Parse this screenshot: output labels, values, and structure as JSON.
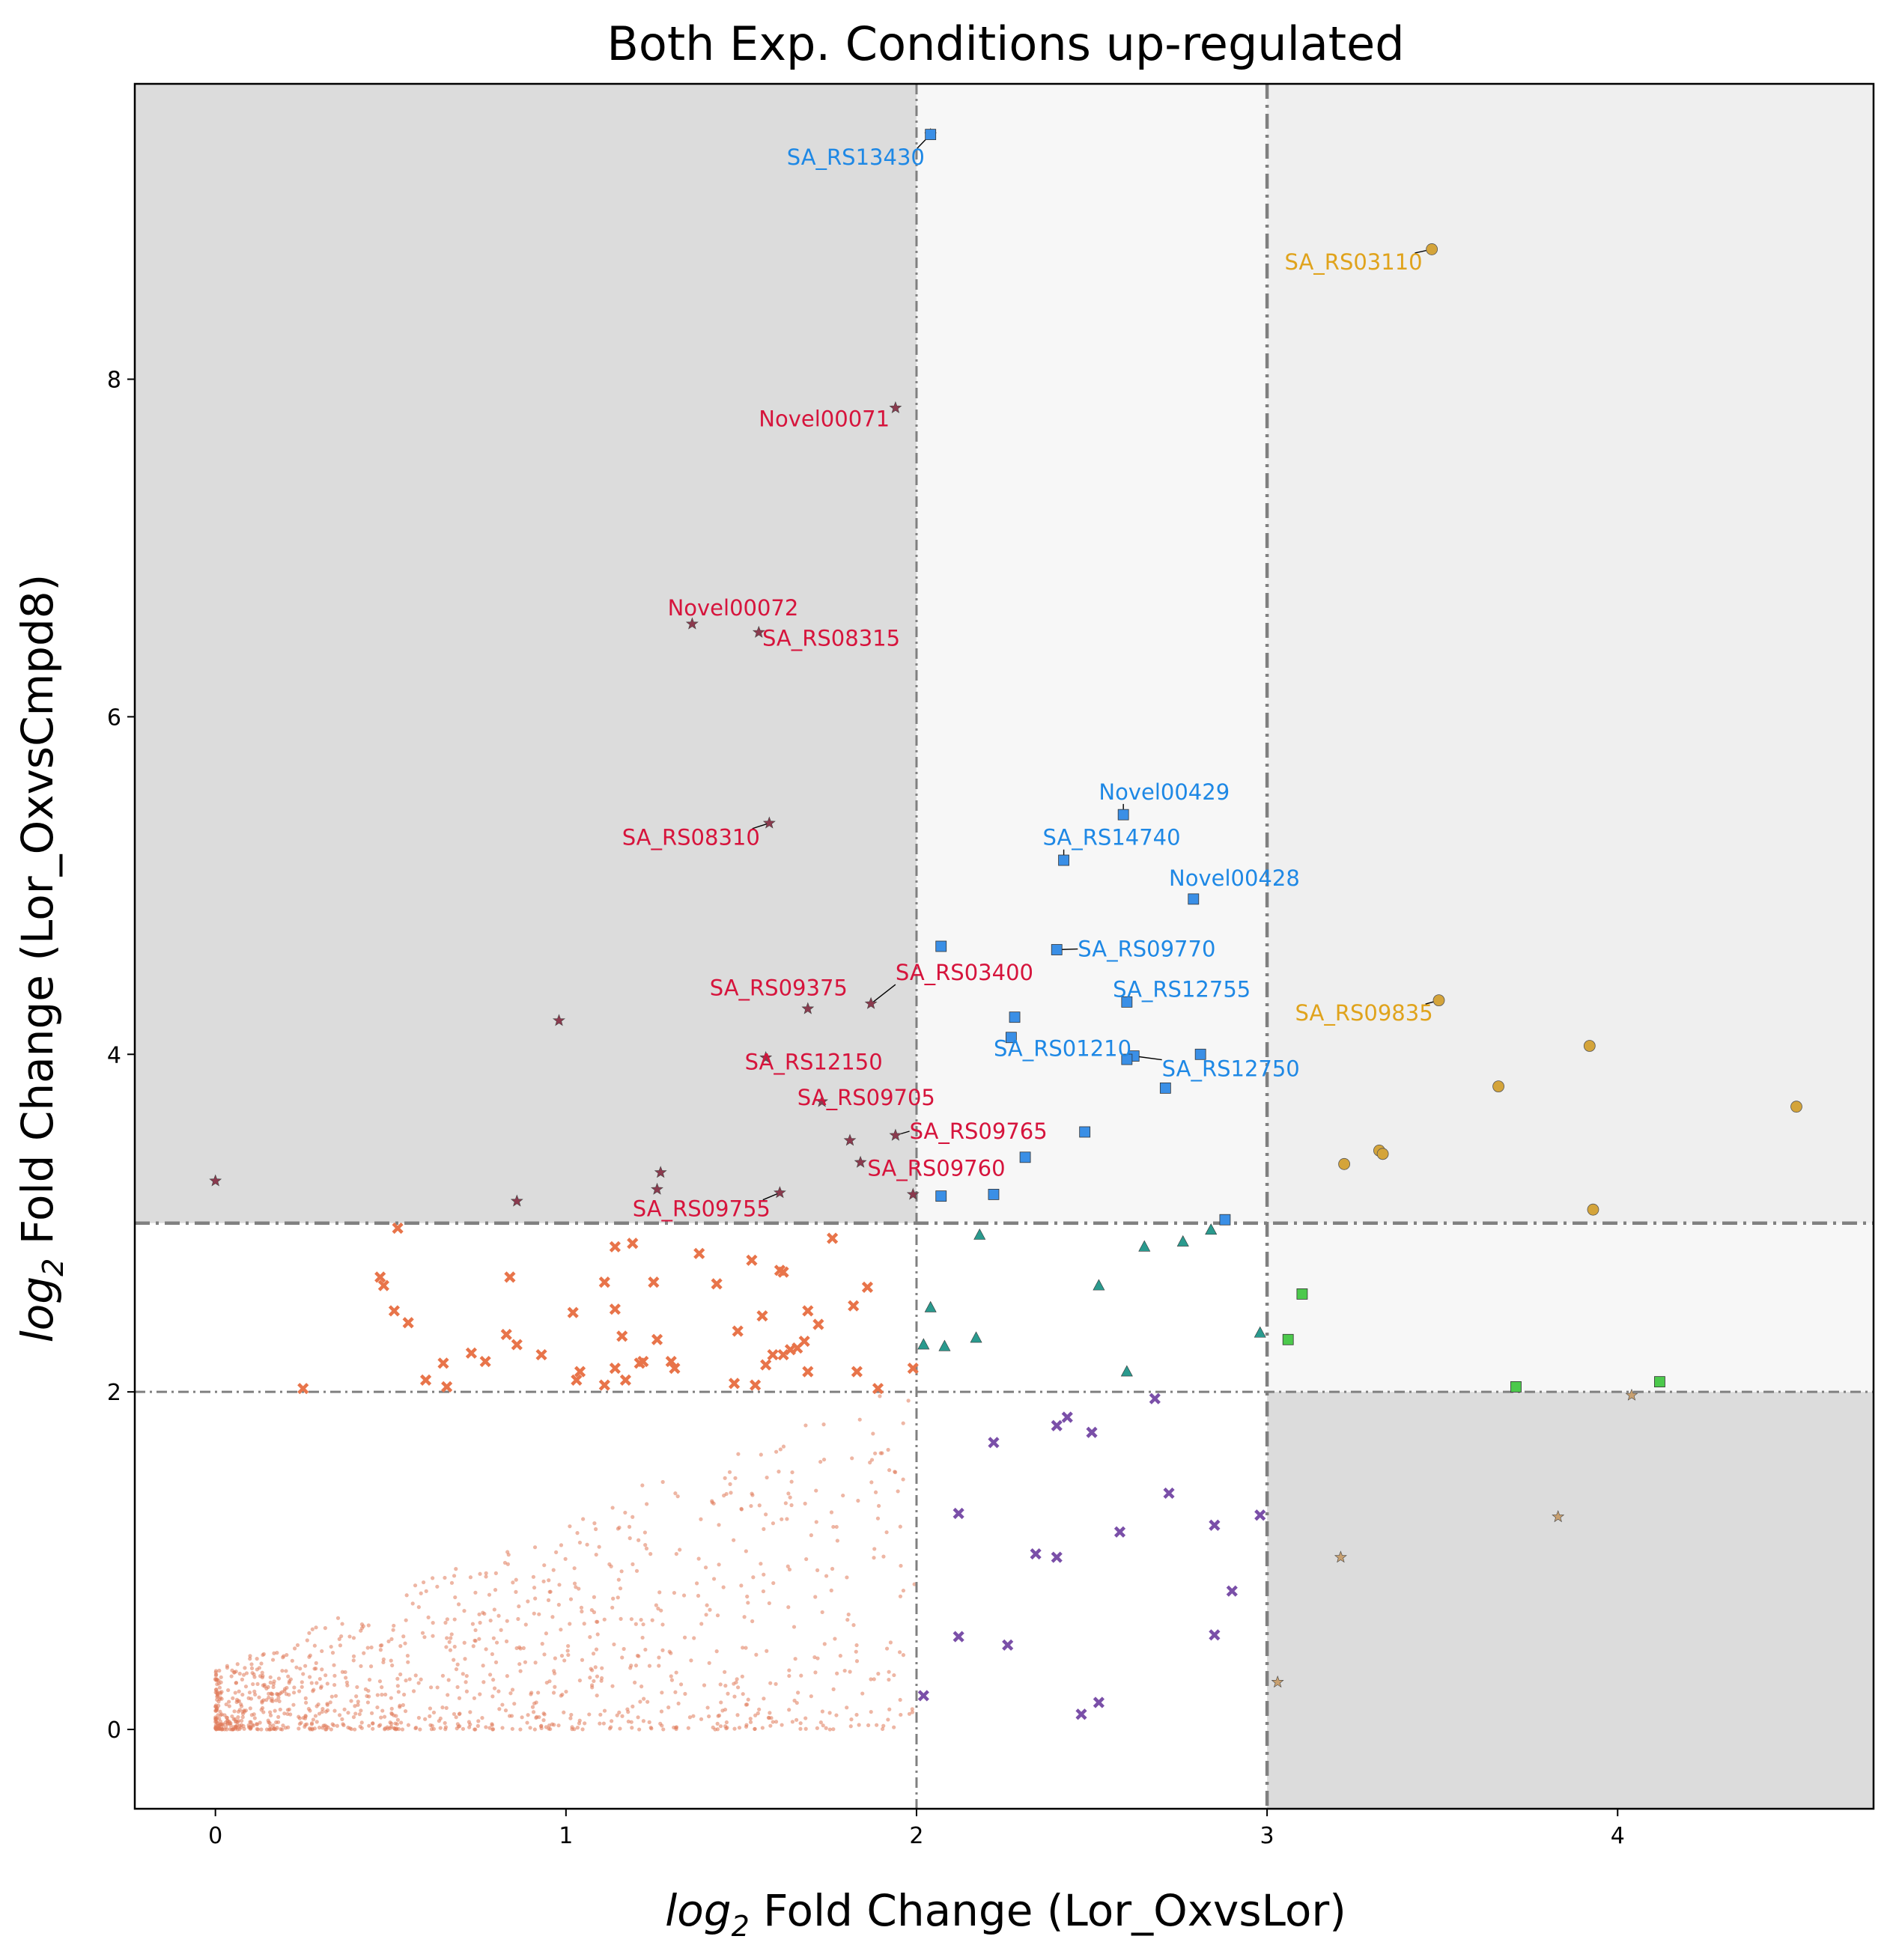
{
  "chart_data": {
    "type": "scatter",
    "title": "Both Exp. Conditions up-regulated",
    "xlabel": {
      "prefix": "log",
      "sub": "2",
      "rest": " Fold Change (Lor_OxvsLor)"
    },
    "ylabel": {
      "prefix": "log",
      "sub": "2",
      "rest": " Fold Change (Lor_OxvsCmpd8)"
    },
    "xlim": [
      -0.23,
      4.73
    ],
    "ylim": [
      -0.47,
      9.75
    ],
    "xticks": [
      0,
      1,
      2,
      3,
      4
    ],
    "yticks": [
      0,
      2,
      4,
      6,
      8
    ],
    "thresholds": {
      "x_inner": 2,
      "x_outer": 3,
      "y_inner": 2,
      "y_outer": 3
    },
    "region_colors": {
      "dark": "#dcdcdc",
      "medium": "#efefef",
      "light": "#f7f7f7"
    },
    "colors": {
      "background_points": "#e07a5a",
      "red_group": "#8b3a4e",
      "red_label": "#d6143c",
      "blue_group": "#3a8fe6",
      "blue_label": "#1e88e5",
      "gold_group": "#d4a43a",
      "gold_label": "#e0a31c",
      "orange_x": "#e8744a",
      "teal": "#2a9a8e",
      "purple": "#7a4fa8",
      "green": "#4cc94c",
      "tan": "#c8a070"
    },
    "series": [
      {
        "marker": "star",
        "color_key": "red_group",
        "points": [
          [
            2.04,
            9.45
          ],
          [
            1.94,
            7.83
          ],
          [
            1.36,
            6.55
          ],
          [
            1.55,
            6.5
          ],
          [
            1.58,
            5.37
          ],
          [
            0.98,
            4.2
          ],
          [
            1.87,
            4.3
          ],
          [
            1.69,
            4.27
          ],
          [
            1.57,
            3.98
          ],
          [
            1.73,
            3.72
          ],
          [
            1.81,
            3.49
          ],
          [
            1.94,
            3.52
          ],
          [
            1.84,
            3.36
          ],
          [
            1.99,
            3.17
          ],
          [
            1.61,
            3.18
          ],
          [
            1.27,
            3.3
          ],
          [
            1.26,
            3.2
          ],
          [
            0.86,
            3.13
          ],
          [
            0.0,
            3.25
          ]
        ]
      },
      {
        "marker": "square",
        "color_key": "blue_group",
        "points": [
          [
            2.04,
            9.45
          ],
          [
            2.59,
            5.42
          ],
          [
            2.42,
            5.15
          ],
          [
            2.79,
            4.92
          ],
          [
            2.07,
            4.64
          ],
          [
            2.4,
            4.62
          ],
          [
            2.6,
            4.31
          ],
          [
            2.28,
            4.22
          ],
          [
            2.27,
            4.1
          ],
          [
            2.62,
            3.99
          ],
          [
            2.6,
            3.97
          ],
          [
            2.81,
            4.0
          ],
          [
            2.71,
            3.8
          ],
          [
            2.48,
            3.54
          ],
          [
            2.31,
            3.39
          ],
          [
            2.22,
            3.17
          ],
          [
            2.07,
            3.16
          ],
          [
            2.88,
            3.02
          ]
        ]
      },
      {
        "marker": "circle",
        "color_key": "gold_group",
        "points": [
          [
            3.47,
            8.77
          ],
          [
            3.49,
            4.32
          ],
          [
            3.92,
            4.05
          ],
          [
            3.66,
            3.81
          ],
          [
            4.51,
            3.69
          ],
          [
            3.32,
            3.43
          ],
          [
            3.33,
            3.41
          ],
          [
            3.22,
            3.35
          ],
          [
            3.93,
            3.08
          ]
        ]
      },
      {
        "marker": "x",
        "color_key": "orange_x",
        "points": [
          [
            0.52,
            2.97
          ],
          [
            0.47,
            2.68
          ],
          [
            0.51,
            2.48
          ],
          [
            0.84,
            2.68
          ],
          [
            0.83,
            2.34
          ],
          [
            0.93,
            2.22
          ],
          [
            1.14,
            2.86
          ],
          [
            1.19,
            2.88
          ],
          [
            1.11,
            2.65
          ],
          [
            1.38,
            2.82
          ],
          [
            1.53,
            2.78
          ],
          [
            1.62,
            2.71
          ],
          [
            1.61,
            2.72
          ],
          [
            1.76,
            2.91
          ],
          [
            1.86,
            2.62
          ],
          [
            1.43,
            2.64
          ],
          [
            1.69,
            2.48
          ],
          [
            1.64,
            2.25
          ],
          [
            1.49,
            2.36
          ],
          [
            1.68,
            2.3
          ],
          [
            1.72,
            2.4
          ],
          [
            1.56,
            2.45
          ],
          [
            1.82,
            2.51
          ],
          [
            1.25,
            2.65
          ],
          [
            1.14,
            2.49
          ],
          [
            1.16,
            2.33
          ],
          [
            1.02,
            2.47
          ],
          [
            1.26,
            2.31
          ],
          [
            0.73,
            2.23
          ],
          [
            0.77,
            2.18
          ],
          [
            0.86,
            2.28
          ],
          [
            0.65,
            2.17
          ],
          [
            0.6,
            2.07
          ],
          [
            0.66,
            2.03
          ],
          [
            1.22,
            2.18
          ],
          [
            1.21,
            2.17
          ],
          [
            1.14,
            2.14
          ],
          [
            1.17,
            2.07
          ],
          [
            1.03,
            2.07
          ],
          [
            1.04,
            2.12
          ],
          [
            1.11,
            2.04
          ],
          [
            1.31,
            2.14
          ],
          [
            1.54,
            2.04
          ],
          [
            1.48,
            2.05
          ],
          [
            1.62,
            2.22
          ],
          [
            1.66,
            2.26
          ],
          [
            1.57,
            2.16
          ],
          [
            1.69,
            2.12
          ],
          [
            1.59,
            2.22
          ],
          [
            1.83,
            2.12
          ],
          [
            1.89,
            2.02
          ],
          [
            1.99,
            2.14
          ],
          [
            0.25,
            2.02
          ],
          [
            0.55,
            2.41
          ],
          [
            0.48,
            2.63
          ],
          [
            1.3,
            2.18
          ]
        ]
      },
      {
        "marker": "triangle",
        "color_key": "teal",
        "points": [
          [
            2.18,
            2.93
          ],
          [
            2.84,
            2.96
          ],
          [
            2.65,
            2.86
          ],
          [
            2.76,
            2.89
          ],
          [
            2.52,
            2.63
          ],
          [
            2.04,
            2.5
          ],
          [
            2.02,
            2.28
          ],
          [
            2.08,
            2.27
          ],
          [
            2.17,
            2.32
          ],
          [
            2.6,
            2.12
          ],
          [
            2.98,
            2.35
          ]
        ]
      },
      {
        "marker": "x",
        "color_key": "purple",
        "points": [
          [
            2.68,
            1.96
          ],
          [
            2.43,
            1.85
          ],
          [
            2.4,
            1.8
          ],
          [
            2.5,
            1.76
          ],
          [
            2.22,
            1.7
          ],
          [
            2.72,
            1.4
          ],
          [
            2.12,
            1.28
          ],
          [
            2.58,
            1.17
          ],
          [
            2.85,
            1.21
          ],
          [
            2.98,
            1.27
          ],
          [
            2.34,
            1.04
          ],
          [
            2.4,
            1.02
          ],
          [
            2.9,
            0.82
          ],
          [
            2.12,
            0.55
          ],
          [
            2.26,
            0.5
          ],
          [
            2.85,
            0.56
          ],
          [
            2.02,
            0.2
          ],
          [
            2.52,
            0.16
          ],
          [
            2.47,
            0.09
          ]
        ]
      },
      {
        "marker": "square",
        "color_key": "green",
        "points": [
          [
            3.1,
            2.58
          ],
          [
            3.06,
            2.31
          ],
          [
            3.71,
            2.03
          ],
          [
            4.12,
            2.06
          ]
        ]
      },
      {
        "marker": "star",
        "color_key": "tan",
        "points": [
          [
            4.04,
            1.98
          ],
          [
            3.83,
            1.26
          ],
          [
            3.21,
            1.02
          ],
          [
            3.03,
            0.28
          ]
        ]
      }
    ],
    "labels": [
      {
        "text": "SA_RS13430",
        "color_key": "blue_label",
        "at": [
          1.63,
          9.27
        ],
        "point": [
          2.04,
          9.45
        ]
      },
      {
        "text": "SA_RS03110",
        "color_key": "gold_label",
        "at": [
          3.05,
          8.65
        ],
        "point": [
          3.47,
          8.77
        ]
      },
      {
        "text": "Novel00071",
        "color_key": "red_label",
        "at": [
          1.55,
          7.72
        ],
        "point": [
          1.94,
          7.83
        ]
      },
      {
        "text": "Novel00072",
        "color_key": "red_label",
        "at": [
          1.29,
          6.6
        ],
        "point": [
          1.36,
          6.55
        ]
      },
      {
        "text": "SA_RS08315",
        "color_key": "red_label",
        "at": [
          1.56,
          6.42
        ],
        "point": [
          1.55,
          6.5
        ]
      },
      {
        "text": "SA_RS08310",
        "color_key": "red_label",
        "at": [
          1.16,
          5.24
        ],
        "point": [
          1.58,
          5.37
        ]
      },
      {
        "text": "Novel00429",
        "color_key": "blue_label",
        "at": [
          2.52,
          5.51
        ],
        "point": [
          2.59,
          5.42
        ]
      },
      {
        "text": "SA_RS14740",
        "color_key": "blue_label",
        "at": [
          2.36,
          5.24
        ],
        "point": [
          2.42,
          5.15
        ]
      },
      {
        "text": "Novel00428",
        "color_key": "blue_label",
        "at": [
          2.72,
          5.0
        ],
        "point": [
          2.79,
          4.92
        ]
      },
      {
        "text": "SA_RS09770",
        "color_key": "blue_label",
        "at": [
          2.46,
          4.58
        ],
        "point": [
          2.4,
          4.62
        ]
      },
      {
        "text": "SA_RS03400",
        "color_key": "red_label",
        "at": [
          1.94,
          4.44
        ],
        "point": [
          1.87,
          4.3
        ]
      },
      {
        "text": "SA_RS09375",
        "color_key": "red_label",
        "at": [
          1.41,
          4.35
        ],
        "point": [
          1.69,
          4.27
        ]
      },
      {
        "text": "SA_RS12755",
        "color_key": "blue_label",
        "at": [
          2.56,
          4.34
        ],
        "point": [
          2.6,
          4.31
        ]
      },
      {
        "text": "SA_RS09835",
        "color_key": "gold_label",
        "at": [
          3.08,
          4.2
        ],
        "point": [
          3.49,
          4.32
        ]
      },
      {
        "text": "SA_RS12150",
        "color_key": "red_label",
        "at": [
          1.51,
          3.91
        ],
        "point": [
          1.57,
          3.98
        ]
      },
      {
        "text": "SA_RS01210",
        "color_key": "blue_label",
        "at": [
          2.22,
          3.99
        ],
        "point": [
          2.27,
          4.1
        ]
      },
      {
        "text": "SA_RS12750",
        "color_key": "blue_label",
        "at": [
          2.7,
          3.87
        ],
        "point": [
          2.62,
          3.99
        ]
      },
      {
        "text": "SA_RS09705",
        "color_key": "red_label",
        "at": [
          1.66,
          3.7
        ],
        "point": [
          1.73,
          3.72
        ]
      },
      {
        "text": "SA_RS09765",
        "color_key": "red_label",
        "at": [
          1.98,
          3.5
        ],
        "point": [
          1.94,
          3.52
        ]
      },
      {
        "text": "SA_RS09760",
        "color_key": "red_label",
        "at": [
          1.86,
          3.28
        ],
        "point": [
          1.84,
          3.36
        ]
      },
      {
        "text": "SA_RS09755",
        "color_key": "red_label",
        "at": [
          1.19,
          3.04
        ],
        "point": [
          1.61,
          3.18
        ]
      }
    ],
    "background_scatter": {
      "count": 1150,
      "x_range": [
        0,
        2.0
      ],
      "y_range": [
        0,
        2.0
      ],
      "concentration": "bottom-left"
    }
  }
}
